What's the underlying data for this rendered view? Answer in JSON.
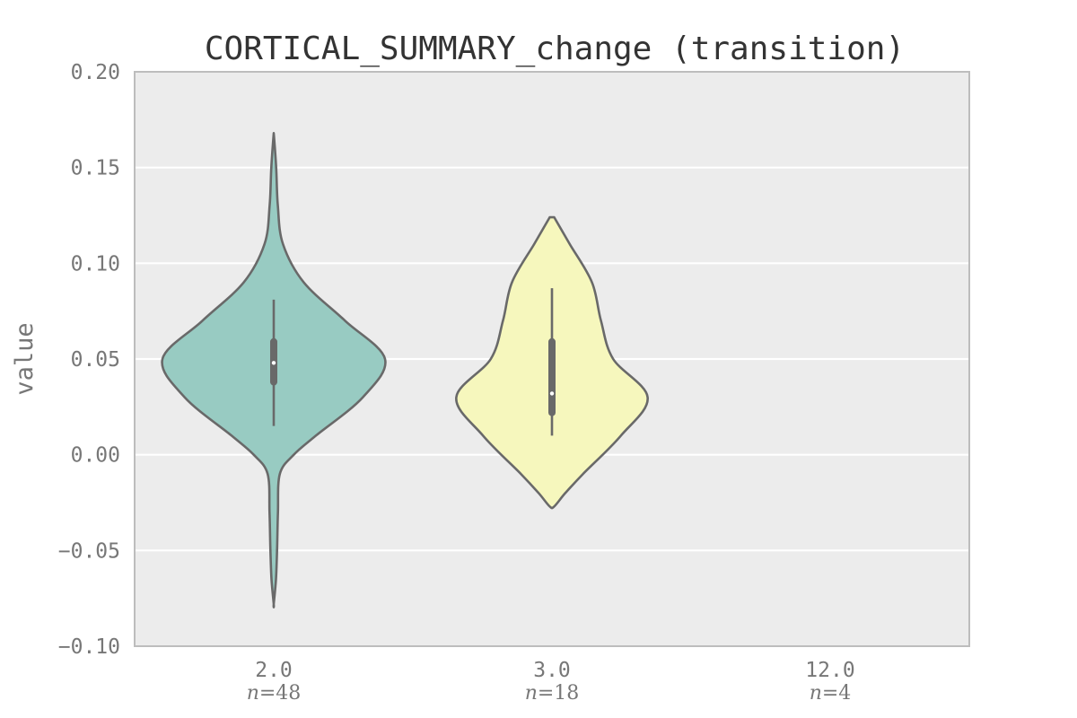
{
  "chart_data": {
    "type": "violin",
    "title": "CORTICAL_SUMMARY_change (transition)",
    "ylabel": "value",
    "xlabel": "",
    "ylim": [
      -0.1,
      0.2
    ],
    "yticks": [
      0.2,
      0.15,
      0.1,
      0.05,
      0.0,
      -0.05,
      -0.1
    ],
    "ytick_labels": [
      "0.20",
      "0.15",
      "0.10",
      "0.05",
      "0.00",
      "−0.05",
      "−0.10"
    ],
    "grid": true,
    "categories": [
      "2.0",
      "3.0",
      "12.0"
    ],
    "n_label_prefix": "n",
    "n_labels": [
      "=48",
      "=18",
      "=4"
    ],
    "violins": [
      {
        "category": "2.0",
        "n": 48,
        "color": "#98cbc2",
        "min": -0.078,
        "max": 0.168,
        "q1": 0.038,
        "median": 0.048,
        "q3": 0.059,
        "whisker_low": 0.015,
        "whisker_high": 0.081,
        "density": [
          [
            0.168,
            0.0
          ],
          [
            0.15,
            0.022
          ],
          [
            0.13,
            0.037
          ],
          [
            0.11,
            0.083
          ],
          [
            0.09,
            0.27
          ],
          [
            0.07,
            0.64
          ],
          [
            0.05,
            1.0
          ],
          [
            0.03,
            0.8
          ],
          [
            0.01,
            0.38
          ],
          [
            0.0,
            0.18
          ],
          [
            -0.01,
            0.055
          ],
          [
            -0.03,
            0.038
          ],
          [
            -0.05,
            0.03
          ],
          [
            -0.065,
            0.02
          ],
          [
            -0.078,
            0.0
          ]
        ]
      },
      {
        "category": "3.0",
        "n": 18,
        "color": "#f6f7bd",
        "min": -0.027,
        "max": 0.124,
        "q1": 0.022,
        "median": 0.032,
        "q3": 0.059,
        "whisker_low": 0.01,
        "whisker_high": 0.087,
        "density": [
          [
            0.124,
            0.02
          ],
          [
            0.11,
            0.16
          ],
          [
            0.09,
            0.36
          ],
          [
            0.07,
            0.44
          ],
          [
            0.05,
            0.55
          ],
          [
            0.03,
            0.86
          ],
          [
            0.01,
            0.62
          ],
          [
            -0.01,
            0.28
          ],
          [
            -0.02,
            0.12
          ],
          [
            -0.027,
            0.02
          ]
        ]
      },
      {
        "category": "12.0",
        "n": 4
      }
    ],
    "colors": {
      "background": "#ececec",
      "grid": "#ffffff",
      "outline": "#696969",
      "frame": "#bdbdbd"
    }
  }
}
